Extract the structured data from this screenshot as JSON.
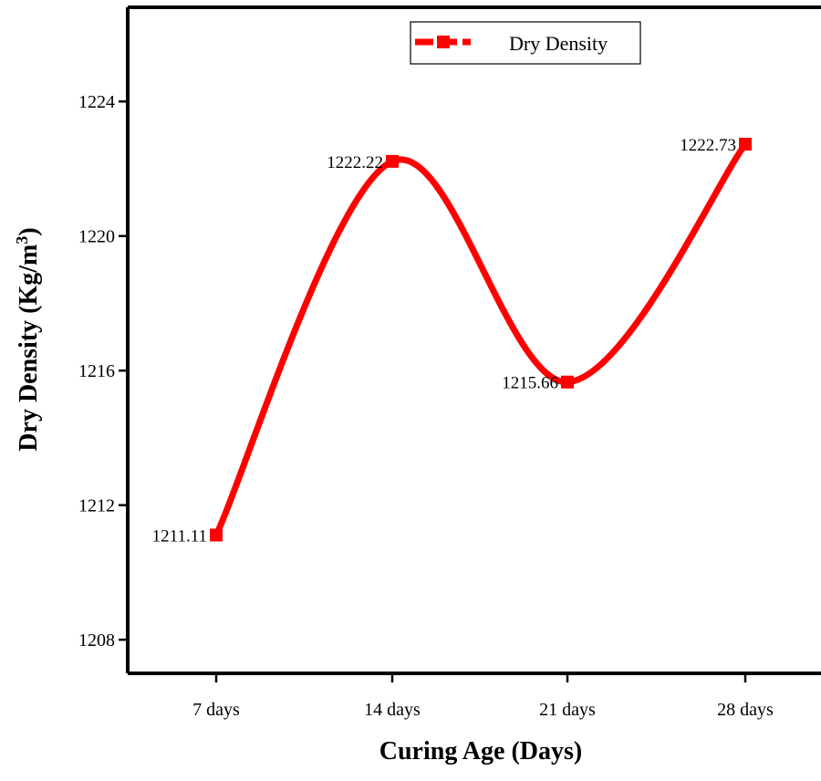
{
  "chart_data": {
    "type": "line",
    "categories": [
      "7 days",
      "14 days",
      "21 days",
      "28 days"
    ],
    "series": [
      {
        "name": "Dry Density",
        "values": [
          1211.11,
          1222.22,
          1215.66,
          1222.73
        ],
        "labels": [
          "1211.11",
          "1222.22",
          "1215.66",
          "1222.73"
        ],
        "color": "#ff0000",
        "marker": "square",
        "smooth": true
      }
    ],
    "xlabel": "Curing Age (Days)",
    "ylabel_main": "Dry Density (Kg/m",
    "ylabel_sup": "3",
    "ylabel_close": ")",
    "yticks": [
      1208,
      1212,
      1216,
      1220,
      1224
    ],
    "ytick_labels": [
      "1208",
      "1212",
      "1216",
      "1220",
      "1224"
    ],
    "ylim": [
      1207,
      1226.8
    ],
    "grid": false,
    "legend": {
      "position": "top-right",
      "entries": [
        "Dry Density"
      ]
    }
  }
}
